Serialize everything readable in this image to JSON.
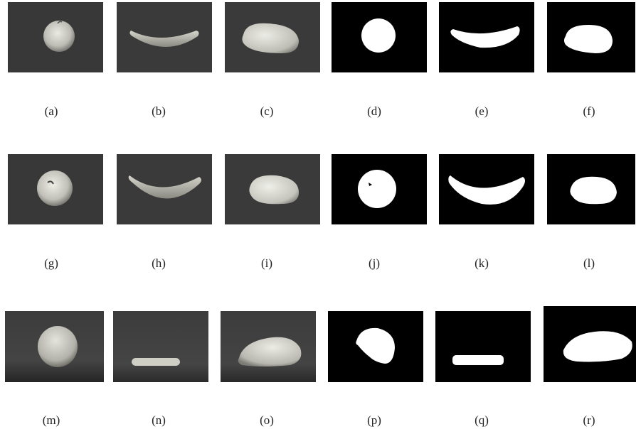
{
  "figure": {
    "captions": [
      "(a)",
      "(b)",
      "(c)",
      "(d)",
      "(e)",
      "(f)",
      "(g)",
      "(h)",
      "(i)",
      "(j)",
      "(k)",
      "(l)",
      "(m)",
      "(n)",
      "(o)",
      "(p)",
      "(q)",
      "(r)"
    ],
    "panels": [
      {
        "caption_index": 0,
        "content": "apple",
        "kind": "grayscale-photo"
      },
      {
        "caption_index": 1,
        "content": "banana",
        "kind": "grayscale-photo"
      },
      {
        "caption_index": 2,
        "content": "mango",
        "kind": "grayscale-photo"
      },
      {
        "caption_index": 3,
        "content": "apple",
        "kind": "binary-mask"
      },
      {
        "caption_index": 4,
        "content": "banana",
        "kind": "binary-mask"
      },
      {
        "caption_index": 5,
        "content": "mango",
        "kind": "binary-mask"
      },
      {
        "caption_index": 6,
        "content": "apple",
        "kind": "grayscale-photo"
      },
      {
        "caption_index": 7,
        "content": "banana",
        "kind": "grayscale-photo"
      },
      {
        "caption_index": 8,
        "content": "mango",
        "kind": "grayscale-photo"
      },
      {
        "caption_index": 9,
        "content": "apple",
        "kind": "binary-mask"
      },
      {
        "caption_index": 10,
        "content": "banana",
        "kind": "binary-mask"
      },
      {
        "caption_index": 11,
        "content": "mango",
        "kind": "binary-mask"
      },
      {
        "caption_index": 12,
        "content": "apple",
        "kind": "grayscale-photo"
      },
      {
        "caption_index": 13,
        "content": "banana",
        "kind": "grayscale-photo"
      },
      {
        "caption_index": 14,
        "content": "mango",
        "kind": "grayscale-photo"
      },
      {
        "caption_index": 15,
        "content": "apple",
        "kind": "binary-mask"
      },
      {
        "caption_index": 16,
        "content": "banana",
        "kind": "binary-mask"
      },
      {
        "caption_index": 17,
        "content": "mango",
        "kind": "binary-mask"
      }
    ],
    "colors": {
      "photo_background": "#3a3a3a",
      "fruit_light": "#d8d8d0",
      "mask_background": "#000000",
      "mask_foreground": "#ffffff"
    }
  }
}
